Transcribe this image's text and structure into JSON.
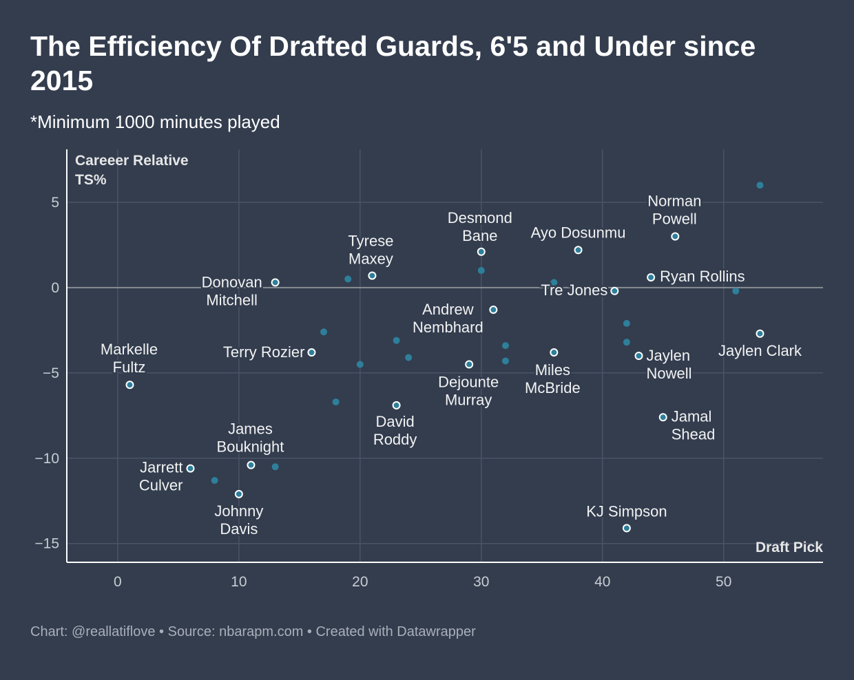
{
  "title": "The Efficiency Of Drafted Guards, 6'5 and Under since 2015",
  "subtitle": "*Minimum 1000 minutes played",
  "footer": "Chart: @reallatiflove • Source: nbarapm.com • Created with Datawrapper",
  "colors": {
    "background": "#333d4e",
    "dot": "#2e7f9a",
    "grid": "#4a5466",
    "zero": "#8a8f96"
  },
  "chart_data": {
    "type": "scatter",
    "title": "The Efficiency Of Drafted Guards, 6'5 and Under since 2015",
    "xlabel": "Draft Pick",
    "ylabel_lines": [
      "Careeer Relative",
      "TS%"
    ],
    "xlim": [
      -4.2,
      58.2
    ],
    "ylim": [
      -16.1,
      8.1
    ],
    "xticks": [
      0,
      10,
      20,
      30,
      40,
      50
    ],
    "yticks": [
      5,
      0,
      -5,
      -10,
      -15
    ],
    "ytick_labels": [
      "5",
      "0",
      "−5",
      "−10",
      "−15"
    ],
    "grid": true,
    "points": [
      {
        "x": 1,
        "y": -5.7,
        "label": [
          "Markelle",
          "Fultz"
        ]
      },
      {
        "x": 6,
        "y": -10.6,
        "label": [
          "Jarrett",
          "Culver"
        ]
      },
      {
        "x": 8,
        "y": -11.3
      },
      {
        "x": 10,
        "y": -12.1,
        "label": [
          "Johnny",
          "Davis"
        ]
      },
      {
        "x": 11,
        "y": -10.4,
        "label": [
          "James",
          "Bouknight"
        ]
      },
      {
        "x": 13,
        "y": -10.5
      },
      {
        "x": 13,
        "y": 0.3,
        "label": [
          "Donovan",
          "Mitchell"
        ]
      },
      {
        "x": 16,
        "y": -3.8,
        "label": [
          "Terry Rozier"
        ]
      },
      {
        "x": 17,
        "y": -2.6
      },
      {
        "x": 18,
        "y": -6.7
      },
      {
        "x": 19,
        "y": 0.5
      },
      {
        "x": 20,
        "y": -4.5
      },
      {
        "x": 21,
        "y": 0.7,
        "label": [
          "Tyrese",
          "Maxey"
        ]
      },
      {
        "x": 23,
        "y": -3.1
      },
      {
        "x": 23,
        "y": -6.9,
        "label": [
          "David",
          "Roddy"
        ]
      },
      {
        "x": 24,
        "y": -4.1
      },
      {
        "x": 29,
        "y": -4.5,
        "label": [
          "Dejounte",
          "Murray"
        ]
      },
      {
        "x": 30,
        "y": 2.1,
        "label": [
          "Desmond",
          "Bane"
        ]
      },
      {
        "x": 30,
        "y": 1.0
      },
      {
        "x": 31,
        "y": -1.3,
        "label": [
          "Andrew",
          "Nembhard"
        ]
      },
      {
        "x": 32,
        "y": -3.4
      },
      {
        "x": 32,
        "y": -4.3
      },
      {
        "x": 36,
        "y": 0.3
      },
      {
        "x": 36,
        "y": -3.8,
        "label": [
          "Miles",
          "McBride"
        ]
      },
      {
        "x": 38,
        "y": 2.2,
        "label": [
          "Ayo Dosunmu"
        ]
      },
      {
        "x": 41,
        "y": -0.2,
        "label": [
          "Tre Jones"
        ]
      },
      {
        "x": 42,
        "y": -2.1
      },
      {
        "x": 42,
        "y": -3.2
      },
      {
        "x": 42,
        "y": -14.1,
        "label": [
          "KJ Simpson"
        ]
      },
      {
        "x": 43,
        "y": -4.0,
        "label": [
          "Jaylen",
          "Nowell"
        ]
      },
      {
        "x": 44,
        "y": 0.6,
        "label": [
          "Ryan Rollins"
        ]
      },
      {
        "x": 45,
        "y": -7.6,
        "label": [
          "Jamal",
          "Shead"
        ]
      },
      {
        "x": 46,
        "y": 3.0,
        "label": [
          "Norman",
          "Powell"
        ]
      },
      {
        "x": 51,
        "y": -0.2
      },
      {
        "x": 53,
        "y": -2.7,
        "label": [
          "Jaylen Clark"
        ]
      },
      {
        "x": 53,
        "y": 6.0
      }
    ]
  }
}
